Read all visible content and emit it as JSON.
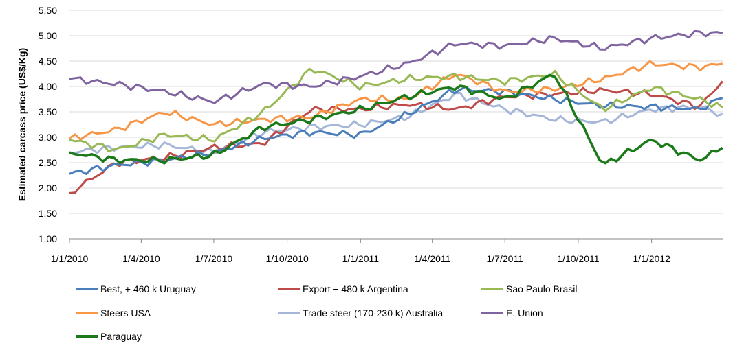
{
  "chart_data": {
    "type": "line",
    "title": "",
    "xlabel": "",
    "ylabel": "Estimated carcass price (US$/Kg)",
    "ylim": [
      1.0,
      5.5
    ],
    "ytick_labels": [
      "1,00",
      "1,50",
      "2,00",
      "2,50",
      "3,00",
      "3,50",
      "4,00",
      "4,50",
      "5,00",
      "5,50"
    ],
    "x_range": [
      "2010-01-01",
      "2012-03-31"
    ],
    "xtick_labels": [
      "1/1/2010",
      "1/4/2010",
      "1/7/2010",
      "1/10/2010",
      "1/1/2011",
      "1/4/2011",
      "1/7/2011",
      "1/10/2011",
      "1/1/2012"
    ],
    "grid": "horizontal",
    "legend_position": "bottom",
    "x_dates": [
      "2010-01-01",
      "2010-03-01",
      "2010-05-01",
      "2010-07-01",
      "2010-09-01",
      "2010-11-01",
      "2011-01-01",
      "2011-03-01",
      "2011-05-01",
      "2011-07-01",
      "2011-09-01",
      "2011-11-01",
      "2012-01-01",
      "2012-03-01",
      "2012-03-31"
    ],
    "series": [
      {
        "name": "Best, + 460 k Uruguay",
        "color": "#4a7ebb",
        "values": [
          2.28,
          2.45,
          2.55,
          2.7,
          2.98,
          3.1,
          3.05,
          3.45,
          3.95,
          3.9,
          3.75,
          3.62,
          3.6,
          3.55,
          3.78
        ]
      },
      {
        "name": "Export + 480 k Argentina",
        "color": "#be4b48",
        "values": [
          1.9,
          2.5,
          2.6,
          2.8,
          2.88,
          3.55,
          3.55,
          3.65,
          3.55,
          3.8,
          3.85,
          3.93,
          3.85,
          3.6,
          4.12
        ]
      },
      {
        "name": "Sao Paulo Brasil",
        "color": "#98b954",
        "values": [
          2.95,
          2.75,
          3.05,
          2.95,
          3.5,
          4.35,
          4.0,
          4.15,
          4.2,
          4.1,
          4.25,
          3.55,
          3.98,
          3.75,
          3.58
        ]
      },
      {
        "name": "Steers USA",
        "color": "#f79646",
        "values": [
          2.98,
          3.15,
          3.5,
          3.25,
          3.35,
          3.4,
          3.75,
          3.75,
          4.25,
          3.9,
          3.95,
          4.15,
          4.45,
          4.38,
          4.45
        ]
      },
      {
        "name": "Trade steer (170-230 k) Australia",
        "color": "#a5b6d8",
        "values": [
          2.7,
          2.8,
          2.85,
          2.7,
          3.1,
          3.2,
          3.25,
          3.4,
          3.85,
          3.55,
          3.35,
          3.3,
          3.55,
          3.6,
          3.45
        ]
      },
      {
        "name": "E. Union",
        "color": "#7f64a0",
        "values": [
          4.15,
          4.05,
          3.9,
          3.7,
          4.05,
          4.0,
          4.2,
          4.45,
          4.85,
          4.8,
          4.95,
          4.75,
          4.95,
          5.05,
          5.05
        ]
      },
      {
        "name": "Paraguay",
        "color": "#1a7a1a",
        "values": [
          2.7,
          2.55,
          2.55,
          2.65,
          3.2,
          3.35,
          3.55,
          3.8,
          4.0,
          3.75,
          4.25,
          2.45,
          2.95,
          2.55,
          2.8
        ]
      }
    ]
  }
}
